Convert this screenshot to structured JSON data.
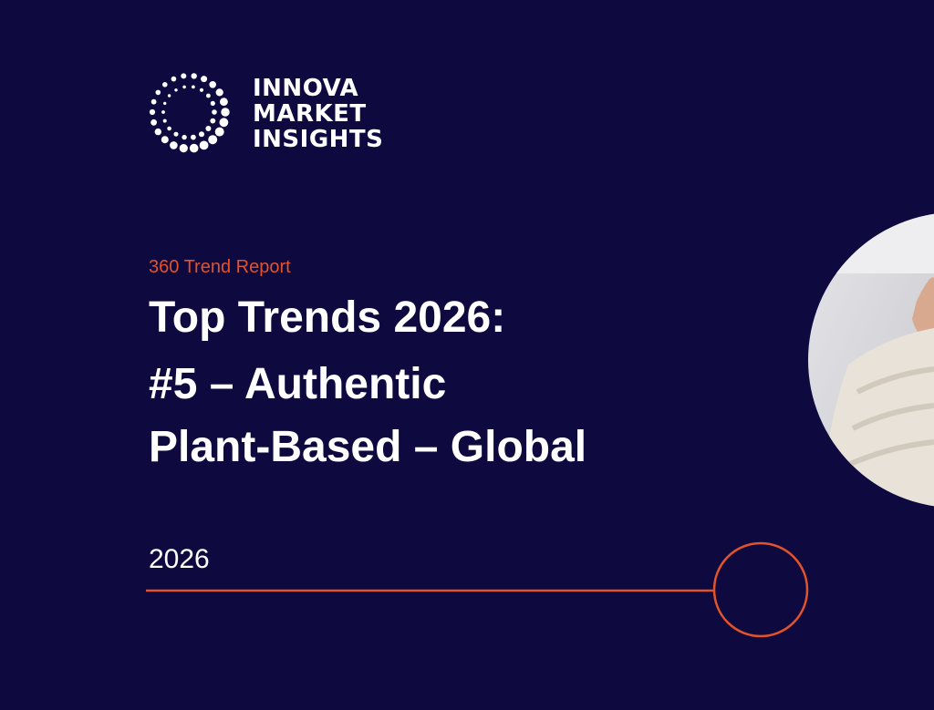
{
  "logo": {
    "lines": [
      "INNOVA",
      "MARKET",
      "INSIGHTS"
    ]
  },
  "kicker": "360 Trend Report",
  "title": {
    "lines": [
      "Top Trends 2026:",
      "#5 – Authentic",
      "Plant-Based – Global"
    ]
  },
  "year": "2026"
}
